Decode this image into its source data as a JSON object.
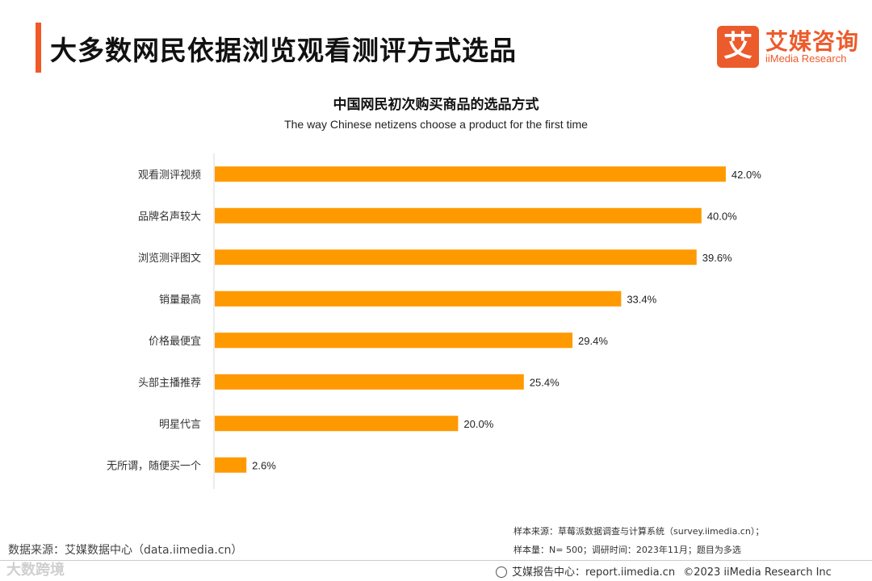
{
  "header": {
    "title": "大多数网民依据浏览观看测评方式选品",
    "accent_color": "#f05a28"
  },
  "logo": {
    "mark": "艾",
    "name_cn": "艾媒咨询",
    "name_en": "iiMedia Research"
  },
  "chart_data": {
    "type": "bar",
    "orientation": "horizontal",
    "title": "中国网民初次购买商品的选品方式",
    "subtitle": "The way Chinese netizens choose a product for the first time",
    "categories": [
      "观看测评视频",
      "品牌名声较大",
      "浏览测评图文",
      "销量最高",
      "价格最便宜",
      "头部主播推荐",
      "明星代言",
      "无所谓，随便买一个"
    ],
    "values": [
      42.0,
      40.0,
      39.6,
      33.4,
      29.4,
      25.4,
      20.0,
      2.6
    ],
    "value_labels": [
      "42.0%",
      "40.0%",
      "39.6%",
      "33.4%",
      "29.4%",
      "25.4%",
      "20.0%",
      "2.6%"
    ],
    "unit": "%",
    "xlim": [
      0,
      43
    ],
    "bar_color": "#ff9900",
    "xlabel": "",
    "ylabel": ""
  },
  "source": {
    "left_text": "数据来源：艾媒数据中心（data.iimedia.cn）",
    "note_line1": "样本来源：草莓派数据调查与计算系统（survey.iimedia.cn）；",
    "note_line2": "样本量：N= 500；调研时间：2023年11月；题目为多选"
  },
  "footer": {
    "report_site": "艾媒报告中心：report.iimedia.cn",
    "copyright": "©2023  iiMedia Research  Inc"
  },
  "watermark": {
    "text": "大数跨境"
  }
}
